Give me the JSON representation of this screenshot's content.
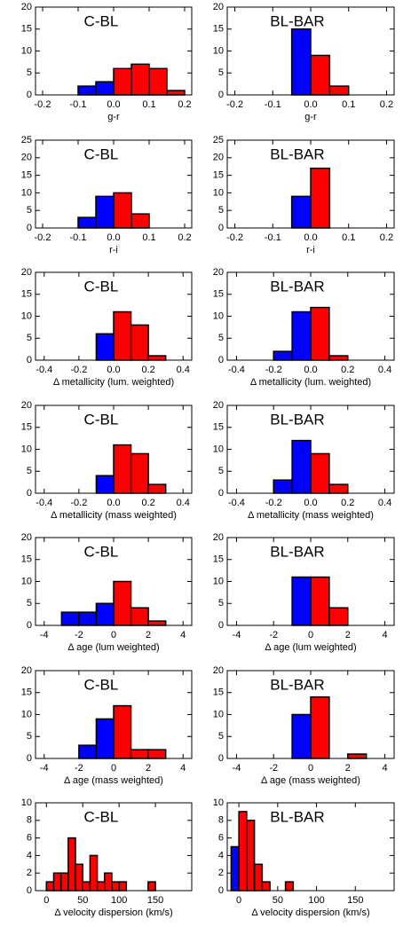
{
  "chart_data": [
    {
      "type": "histogram",
      "label": "C-BL",
      "xlabel": "g-r",
      "bins": [
        -0.1,
        -0.05,
        0,
        0.05,
        0.1,
        0.15,
        0.2
      ],
      "values": [
        2,
        3,
        6,
        7,
        6,
        1
      ],
      "colors": [
        "#0000ff",
        "#0000ff",
        "#ff0000",
        "#ff0000",
        "#ff0000",
        "#ff0000"
      ],
      "xlim": [
        -0.22,
        0.22
      ],
      "ylim": [
        0,
        20
      ],
      "xticks": [
        -0.2,
        {
          "value": -0.1,
          "label": "-0.1"
        },
        {
          "value": 0,
          "label": "0.0"
        },
        0.1,
        0.2
      ],
      "yticks": [
        0,
        5,
        10,
        15,
        20
      ]
    },
    {
      "type": "histogram",
      "label": "BL-BAR",
      "xlabel": "g-r",
      "bins": [
        -0.05,
        0,
        0.05,
        0.1
      ],
      "values": [
        15,
        9,
        2
      ],
      "colors": [
        "#0000ff",
        "#ff0000",
        "#ff0000"
      ],
      "xlim": [
        -0.22,
        0.22
      ],
      "ylim": [
        0,
        20
      ],
      "xticks": [
        -0.2,
        {
          "value": -0.1,
          "label": "-0.1"
        },
        {
          "value": 0,
          "label": "0.0"
        },
        0.1,
        0.2
      ],
      "yticks": [
        0,
        5,
        10,
        15,
        20
      ]
    },
    {
      "type": "histogram",
      "label": "C-BL",
      "xlabel": "r-i",
      "bins": [
        -0.1,
        -0.05,
        0,
        0.05,
        0.1
      ],
      "values": [
        3,
        9,
        10,
        4
      ],
      "colors": [
        "#0000ff",
        "#0000ff",
        "#ff0000",
        "#ff0000"
      ],
      "xlim": [
        -0.22,
        0.22
      ],
      "ylim": [
        0,
        25
      ],
      "xticks": [
        -0.2,
        {
          "value": -0.1,
          "label": "-0.1"
        },
        {
          "value": 0,
          "label": "0.0"
        },
        0.1,
        0.2
      ],
      "yticks": [
        0,
        5,
        10,
        15,
        20,
        25
      ]
    },
    {
      "type": "histogram",
      "label": "BL-BAR",
      "xlabel": "r-i",
      "bins": [
        -0.05,
        0,
        0.05
      ],
      "values": [
        9,
        17
      ],
      "colors": [
        "#0000ff",
        "#ff0000"
      ],
      "xlim": [
        -0.22,
        0.22
      ],
      "ylim": [
        0,
        25
      ],
      "xticks": [
        -0.2,
        {
          "value": -0.1,
          "label": "-0.1"
        },
        {
          "value": 0,
          "label": "0.0"
        },
        0.1,
        0.2
      ],
      "yticks": [
        0,
        5,
        10,
        15,
        20,
        25
      ]
    },
    {
      "type": "histogram",
      "label": "C-BL",
      "xlabel": "Δ metallicity (lum. weighted)",
      "bins": [
        -0.1,
        0,
        0.1,
        0.2,
        0.3
      ],
      "values": [
        6,
        11,
        8,
        1
      ],
      "colors": [
        "#0000ff",
        "#ff0000",
        "#ff0000",
        "#ff0000"
      ],
      "xlim": [
        -0.45,
        0.45
      ],
      "ylim": [
        0,
        20
      ],
      "xticks": [
        -0.4,
        -0.2,
        {
          "value": 0,
          "label": "0.0"
        },
        0.2,
        0.4
      ],
      "yticks": [
        0,
        5,
        10,
        15,
        20
      ]
    },
    {
      "type": "histogram",
      "label": "BL-BAR",
      "xlabel": "Δ metallicity (lum. weighted)",
      "bins": [
        -0.2,
        -0.1,
        0,
        0.1,
        0.2
      ],
      "values": [
        2,
        11,
        12,
        1
      ],
      "colors": [
        "#0000ff",
        "#0000ff",
        "#ff0000",
        "#ff0000"
      ],
      "xlim": [
        -0.45,
        0.45
      ],
      "ylim": [
        0,
        20
      ],
      "xticks": [
        -0.4,
        -0.2,
        {
          "value": 0,
          "label": "0.0"
        },
        0.2,
        0.4
      ],
      "yticks": [
        0,
        5,
        10,
        15,
        20
      ]
    },
    {
      "type": "histogram",
      "label": "C-BL",
      "xlabel": "Δ metallicity (mass weighted)",
      "bins": [
        -0.1,
        0,
        0.1,
        0.2,
        0.3
      ],
      "values": [
        4,
        11,
        9,
        2
      ],
      "colors": [
        "#0000ff",
        "#ff0000",
        "#ff0000",
        "#ff0000"
      ],
      "xlim": [
        -0.45,
        0.45
      ],
      "ylim": [
        0,
        20
      ],
      "xticks": [
        -0.4,
        -0.2,
        {
          "value": 0,
          "label": "0.0"
        },
        0.2,
        0.4
      ],
      "yticks": [
        0,
        5,
        10,
        15,
        20
      ]
    },
    {
      "type": "histogram",
      "label": "BL-BAR",
      "xlabel": "Δ metallicity (mass weighted)",
      "bins": [
        -0.2,
        -0.1,
        0,
        0.1,
        0.2
      ],
      "values": [
        3,
        12,
        9,
        2
      ],
      "colors": [
        "#0000ff",
        "#0000ff",
        "#ff0000",
        "#ff0000"
      ],
      "xlim": [
        -0.45,
        0.45
      ],
      "ylim": [
        0,
        20
      ],
      "xticks": [
        -0.4,
        -0.2,
        {
          "value": 0,
          "label": "0.0"
        },
        0.2,
        0.4
      ],
      "yticks": [
        0,
        5,
        10,
        15,
        20
      ]
    },
    {
      "type": "histogram",
      "label": "C-BL",
      "xlabel": "Δ age (lum weighted)",
      "bins": [
        -3,
        -2,
        -1,
        0,
        1,
        2,
        3
      ],
      "values": [
        3,
        3,
        5,
        10,
        4,
        1
      ],
      "colors": [
        "#0000ff",
        "#0000ff",
        "#0000ff",
        "#ff0000",
        "#ff0000",
        "#ff0000"
      ],
      "xlim": [
        -4.5,
        4.5
      ],
      "ylim": [
        0,
        20
      ],
      "xticks": [
        -4,
        -2,
        0,
        2,
        4
      ],
      "yticks": [
        0,
        5,
        10,
        15,
        20
      ]
    },
    {
      "type": "histogram",
      "label": "BL-BAR",
      "xlabel": "Δ age (lum weighted)",
      "bins": [
        -1,
        0,
        1,
        2
      ],
      "values": [
        11,
        11,
        4
      ],
      "colors": [
        "#0000ff",
        "#ff0000",
        "#ff0000"
      ],
      "xlim": [
        -4.5,
        4.5
      ],
      "ylim": [
        0,
        20
      ],
      "xticks": [
        -4,
        -2,
        0,
        2,
        4
      ],
      "yticks": [
        0,
        5,
        10,
        15,
        20
      ]
    },
    {
      "type": "histogram",
      "label": "C-BL",
      "xlabel": "Δ age (mass weighted)",
      "bins": [
        -2,
        -1,
        0,
        1,
        2,
        3
      ],
      "values": [
        3,
        9,
        12,
        2,
        2
      ],
      "colors": [
        "#0000ff",
        "#0000ff",
        "#ff0000",
        "#ff0000",
        "#ff0000"
      ],
      "xlim": [
        -4.5,
        4.5
      ],
      "ylim": [
        0,
        20
      ],
      "xticks": [
        -4,
        -2,
        0,
        2,
        4
      ],
      "yticks": [
        0,
        5,
        10,
        15,
        20
      ]
    },
    {
      "type": "histogram",
      "label": "BL-BAR",
      "xlabel": "Δ age (mass weighted)",
      "bins": [
        -1,
        0,
        1,
        2,
        3
      ],
      "values": [
        10,
        14,
        0,
        1
      ],
      "colors": [
        "#0000ff",
        "#ff0000",
        "#ff0000",
        "#ff0000"
      ],
      "xlim": [
        -4.5,
        4.5
      ],
      "ylim": [
        0,
        20
      ],
      "xticks": [
        -4,
        -2,
        0,
        2,
        4
      ],
      "yticks": [
        0,
        5,
        10,
        15,
        20
      ]
    },
    {
      "type": "histogram",
      "label": "C-BL",
      "xlabel": "Δ velocity dispersion (km/s)",
      "bins": [
        0,
        10,
        20,
        30,
        40,
        50,
        60,
        70,
        80,
        90,
        100,
        110,
        120,
        130,
        140,
        150
      ],
      "values": [
        1,
        2,
        2,
        6,
        3,
        1,
        4,
        1,
        2,
        1,
        1,
        0,
        0,
        0,
        1
      ],
      "colors": [
        "#ff0000",
        "#ff0000",
        "#ff0000",
        "#ff0000",
        "#ff0000",
        "#ff0000",
        "#ff0000",
        "#ff0000",
        "#ff0000",
        "#ff0000",
        "#ff0000",
        "#ff0000",
        "#ff0000",
        "#ff0000",
        "#ff0000"
      ],
      "xlim": [
        -15,
        200
      ],
      "ylim": [
        0,
        10
      ],
      "xticks": [
        0,
        50,
        100,
        150
      ],
      "yticks": [
        0,
        2,
        4,
        6,
        8,
        10
      ]
    },
    {
      "type": "histogram",
      "label": "BL-BAR",
      "xlabel": "Δ velocity dispersion (km/s)",
      "bins": [
        -10,
        0,
        10,
        20,
        30,
        40,
        50,
        60,
        70
      ],
      "values": [
        5,
        9,
        8,
        3,
        1,
        0,
        0,
        1
      ],
      "colors": [
        "#0000ff",
        "#ff0000",
        "#ff0000",
        "#ff0000",
        "#ff0000",
        "#ff0000",
        "#ff0000",
        "#ff0000"
      ],
      "xlim": [
        -15,
        200
      ],
      "ylim": [
        0,
        10
      ],
      "xticks": [
        0,
        50,
        100,
        150
      ],
      "yticks": [
        0,
        2,
        4,
        6,
        8,
        10
      ]
    }
  ]
}
